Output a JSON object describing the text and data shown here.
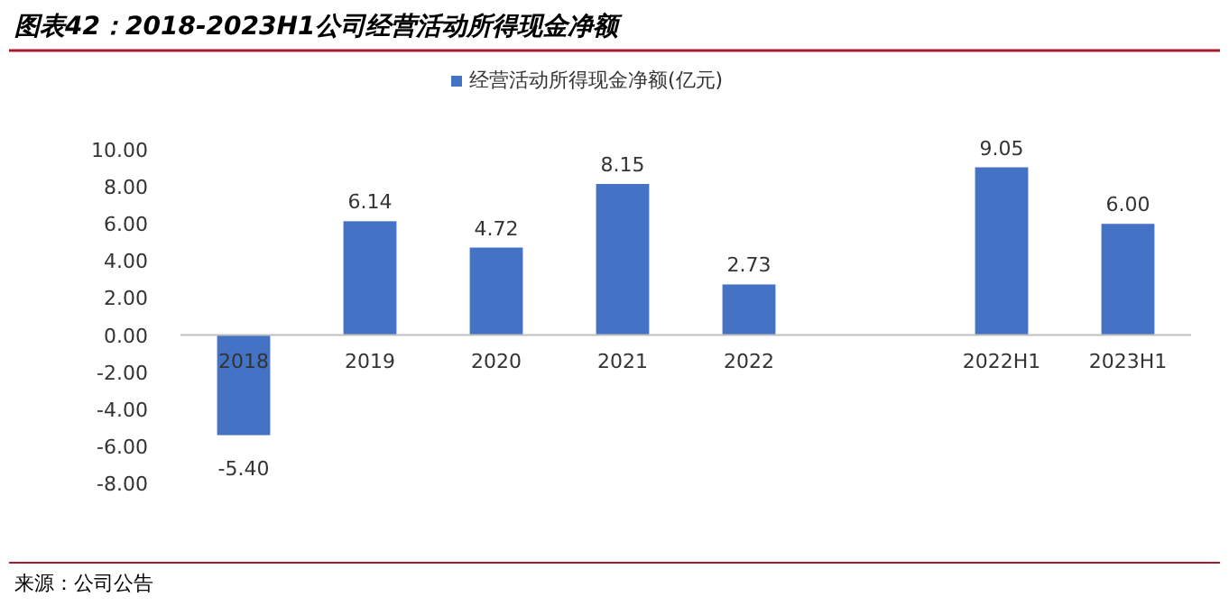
{
  "chart_data": {
    "type": "bar",
    "title": "图表42：2018-2023H1公司经营活动所得现金净额",
    "categories": [
      "2018",
      "2019",
      "2020",
      "2021",
      "2022",
      null,
      "2022H1",
      "2023H1"
    ],
    "series": [
      {
        "name": "经营活动所得现金净额(亿元)",
        "color": "#4472c4",
        "values": [
          -5.4,
          6.14,
          4.72,
          8.15,
          2.73,
          null,
          9.05,
          6.0
        ],
        "value_labels": [
          "-5.40",
          "6.14",
          "4.72",
          "8.15",
          "2.73",
          null,
          "9.05",
          "6.00"
        ]
      }
    ],
    "ylim": [
      -8,
      10
    ],
    "yticks": [
      {
        "value": -8,
        "label": "-8.00"
      },
      {
        "value": -6,
        "label": "-6.00"
      },
      {
        "value": -4,
        "label": "-4.00"
      },
      {
        "value": -2,
        "label": "-2.00"
      },
      {
        "value": 0,
        "label": "0.00"
      },
      {
        "value": 2,
        "label": "2.00"
      },
      {
        "value": 4,
        "label": "4.00"
      },
      {
        "value": 6,
        "label": "6.00"
      },
      {
        "value": 8,
        "label": "8.00"
      },
      {
        "value": 10,
        "label": "10.00"
      }
    ],
    "legend": "top",
    "annotations": [
      "来源：公司公告"
    ]
  }
}
